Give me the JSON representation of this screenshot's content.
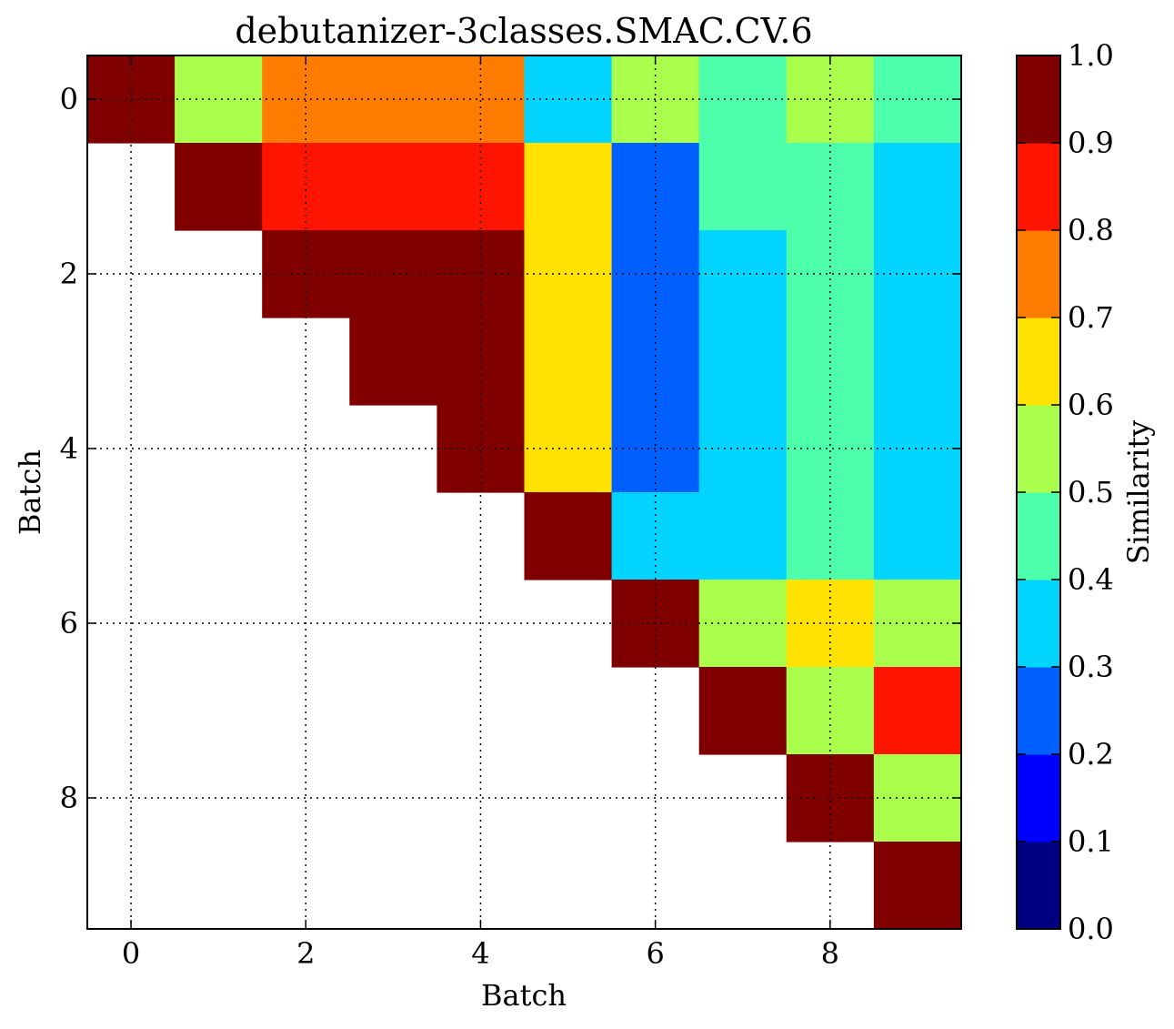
{
  "chart_data": {
    "type": "heatmap",
    "title": "debutanizer-3classes.SMAC.CV.6",
    "xlabel": "Batch",
    "ylabel": "Batch",
    "x_ticks": [
      "0",
      "2",
      "4",
      "6",
      "8"
    ],
    "y_ticks": [
      "0",
      "2",
      "4",
      "6",
      "8"
    ],
    "rows": 10,
    "cols": 10,
    "xlim": [
      -0.5,
      9.5
    ],
    "ylim": [
      9.5,
      -0.5
    ],
    "grid": true,
    "colorbar": {
      "label": "Similarity",
      "ticks": [
        "0.0",
        "0.1",
        "0.2",
        "0.3",
        "0.4",
        "0.5",
        "0.6",
        "0.7",
        "0.8",
        "0.9",
        "1.0"
      ],
      "range": [
        0,
        1
      ],
      "colors": [
        "#000080",
        "#0000f1",
        "#004dff",
        "#00b1ff",
        "#29ffce",
        "#7dff7a",
        "#ceff29",
        "#ffc400",
        "#ff6800",
        "#f10800"
      ]
    },
    "colormap": {
      "0.9-1.0": "#800000",
      "0.8-0.9": "#ff1400",
      "0.7-0.8": "#ff7c00",
      "0.6-0.7": "#ffe200",
      "0.5-0.6": "#aaff4d",
      "0.4-0.5": "#4dffaa",
      "0.3-0.4": "#00d4ff",
      "0.2-0.3": "#0060ff",
      "0.1-0.2": "#0000ff",
      "0.0-0.1": "#000080"
    },
    "values": [
      [
        0.95,
        0.55,
        0.75,
        0.75,
        0.75,
        0.35,
        0.55,
        0.45,
        0.55,
        0.45
      ],
      [
        null,
        0.95,
        0.85,
        0.85,
        0.85,
        0.65,
        0.25,
        0.45,
        0.45,
        0.35
      ],
      [
        null,
        null,
        0.95,
        0.95,
        0.95,
        0.65,
        0.25,
        0.35,
        0.45,
        0.35
      ],
      [
        null,
        null,
        null,
        0.95,
        0.95,
        0.65,
        0.25,
        0.35,
        0.45,
        0.35
      ],
      [
        null,
        null,
        null,
        null,
        0.95,
        0.65,
        0.25,
        0.35,
        0.45,
        0.35
      ],
      [
        null,
        null,
        null,
        null,
        null,
        0.95,
        0.35,
        0.35,
        0.45,
        0.35
      ],
      [
        null,
        null,
        null,
        null,
        null,
        null,
        0.95,
        0.55,
        0.65,
        0.55
      ],
      [
        null,
        null,
        null,
        null,
        null,
        null,
        null,
        0.95,
        0.55,
        0.85
      ],
      [
        null,
        null,
        null,
        null,
        null,
        null,
        null,
        null,
        0.95,
        0.55
      ],
      [
        null,
        null,
        null,
        null,
        null,
        null,
        null,
        null,
        null,
        0.95
      ]
    ]
  }
}
